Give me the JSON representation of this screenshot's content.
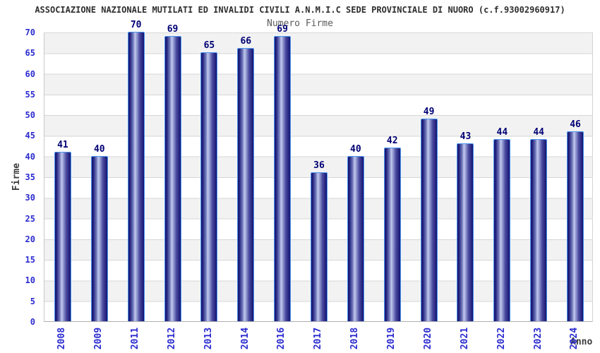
{
  "header": {
    "title": "ASSOCIAZIONE NAZIONALE MUTILATI ED INVALIDI CIVILI A.N.M.I.C SEDE PROVINCIALE DI NUORO (c.f.93002960917)",
    "subtitle": "Numero Firme"
  },
  "chart_data": {
    "type": "bar",
    "title": "ASSOCIAZIONE NAZIONALE MUTILATI ED INVALIDI CIVILI A.N.M.I.C SEDE PROVINCIALE DI NUORO (c.f.93002960917)",
    "subtitle": "Numero Firme",
    "xlabel": "Anno",
    "ylabel": "Firme",
    "categories": [
      "2008",
      "2009",
      "2011",
      "2012",
      "2013",
      "2014",
      "2016",
      "2017",
      "2018",
      "2019",
      "2020",
      "2021",
      "2022",
      "2023",
      "2024"
    ],
    "values": [
      41,
      40,
      70,
      69,
      65,
      66,
      69,
      36,
      40,
      42,
      49,
      43,
      44,
      44,
      46
    ],
    "yticks": [
      0,
      5,
      10,
      15,
      20,
      25,
      30,
      35,
      40,
      45,
      50,
      55,
      60,
      65,
      70
    ],
    "ylim": [
      0,
      70
    ],
    "grid": "horizontal gridlines every 5 units with alternating gray/white bands",
    "legend_position": "none",
    "colors": {
      "bar_edge_dark": "#141470",
      "bar_highlight": "#c2c9ee",
      "bar_border": "#4a96f0",
      "tick_label": "#2b2bd0",
      "value_label": "#000075",
      "title": "#2e2e2e",
      "subtitle": "#5a5a5a",
      "axis_title": "#3c3c3c",
      "band_gray": "#f2f2f2",
      "band_white": "#ffffff",
      "gridline": "#d6d6d6"
    }
  }
}
